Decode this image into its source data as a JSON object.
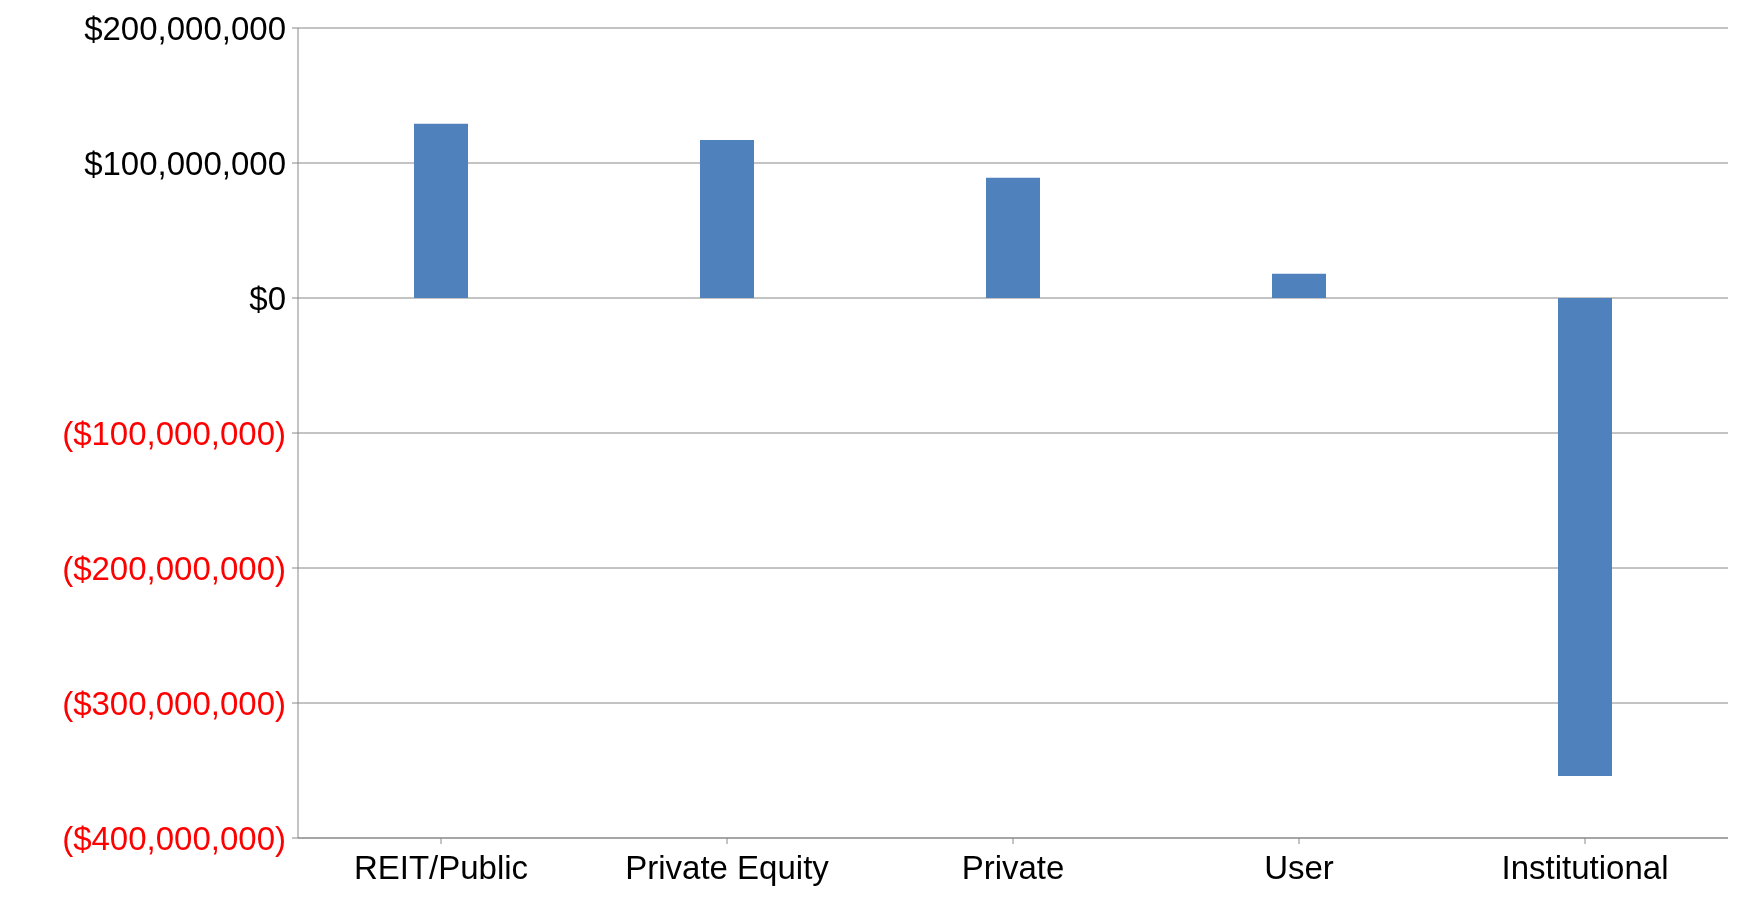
{
  "chart_data": {
    "type": "bar",
    "categories": [
      "REIT/Public",
      "Private Equity",
      "Private",
      "User",
      "Institutional"
    ],
    "values": [
      129000000,
      117000000,
      89000000,
      18000000,
      -354000000
    ],
    "color": "#4f81bd",
    "ylim": [
      -400000000,
      200000000
    ],
    "yticks": [
      {
        "value": -400000000,
        "label": "($400,000,000)"
      },
      {
        "value": -300000000,
        "label": "($300,000,000)"
      },
      {
        "value": -200000000,
        "label": "($200,000,000)"
      },
      {
        "value": -100000000,
        "label": "($100,000,000)"
      },
      {
        "value": 0,
        "label": "$0"
      },
      {
        "value": 100000000,
        "label": "$100,000,000"
      },
      {
        "value": 200000000,
        "label": "$200,000,000"
      }
    ],
    "grid": "y"
  }
}
